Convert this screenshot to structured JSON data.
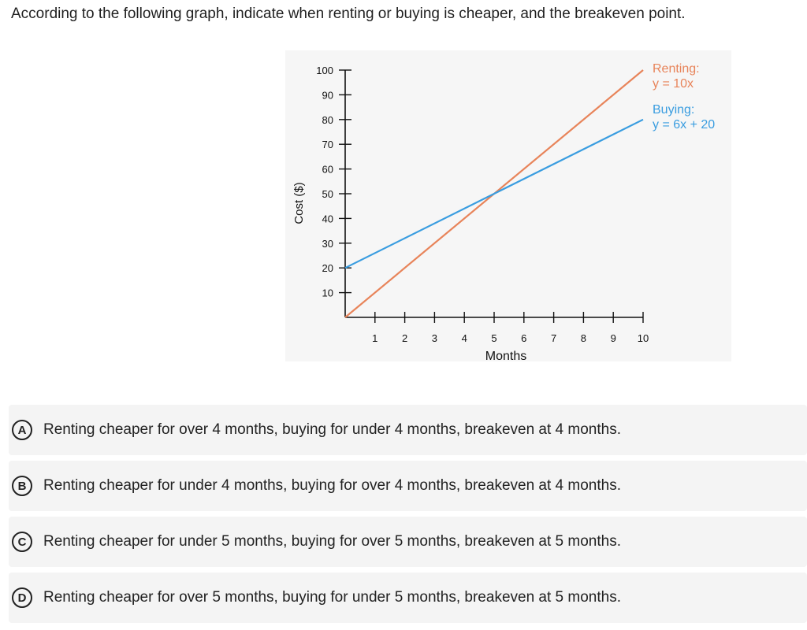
{
  "question": {
    "text": "According to the following graph, indicate when renting or buying is cheaper, and the breakeven point."
  },
  "chart_data": {
    "type": "line",
    "xlabel": "Months",
    "ylabel": "Cost ($)",
    "xlim": [
      0,
      10
    ],
    "ylim": [
      0,
      100
    ],
    "xticks": [
      1,
      2,
      3,
      4,
      5,
      6,
      7,
      8,
      9,
      10
    ],
    "yticks": [
      10,
      20,
      30,
      40,
      50,
      60,
      70,
      80,
      90,
      100
    ],
    "grid": false,
    "series": [
      {
        "name": "Renting:",
        "equation": "y = 10x",
        "color": "#e8845a",
        "x": [
          0,
          10
        ],
        "y": [
          0,
          100
        ]
      },
      {
        "name": "Buying:",
        "equation": "y = 6x + 20",
        "color": "#3a9de0",
        "x": [
          0,
          10
        ],
        "y": [
          20,
          80
        ]
      }
    ]
  },
  "options": [
    {
      "letter": "A",
      "text": "Renting cheaper for over 4 months, buying for under 4 months, breakeven at 4 months."
    },
    {
      "letter": "B",
      "text": "Renting cheaper for under 4 months, buying for over 4 months, breakeven at 4 months."
    },
    {
      "letter": "C",
      "text": "Renting cheaper for under 5 months, buying for over 5 months, breakeven at 5 months."
    },
    {
      "letter": "D",
      "text": "Renting cheaper for over 5 months, buying for under 5 months, breakeven at 5 months."
    }
  ]
}
